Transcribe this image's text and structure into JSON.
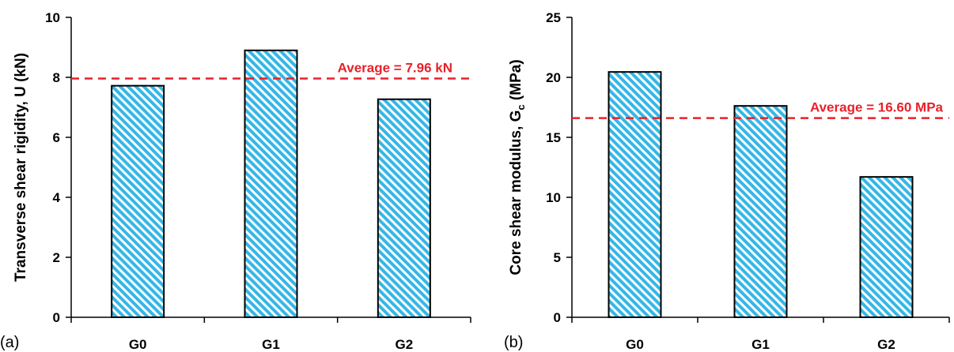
{
  "colors": {
    "bar_fill": "#35b7e6",
    "bar_stroke": "#000000",
    "average_line": "#e8202a",
    "axis": "#000000"
  },
  "chart_data": [
    {
      "type": "bar",
      "panel_label": "(a)",
      "categories": [
        "G0",
        "G1",
        "G2"
      ],
      "values": [
        7.72,
        8.9,
        7.27
      ],
      "ylabel": "Transverse shear rigidity, U (kN)",
      "ylim": [
        0,
        10
      ],
      "yticks": [
        0,
        2,
        4,
        6,
        8,
        10
      ],
      "grid": false,
      "bar_pattern": "diagonal-hatch",
      "reference_line": {
        "value": 7.96,
        "label": "Average = 7.96 kN",
        "style": "dashed"
      }
    },
    {
      "type": "bar",
      "panel_label": "(b)",
      "categories": [
        "G0",
        "G1",
        "G2"
      ],
      "values": [
        20.45,
        17.62,
        11.7
      ],
      "ylabel_main": "Core shear modulus,  G",
      "ylabel_sub": "c",
      "ylabel_unit": " (MPa)",
      "ylim": [
        0,
        25
      ],
      "yticks": [
        0,
        5,
        10,
        15,
        20,
        25
      ],
      "grid": false,
      "bar_pattern": "diagonal-hatch",
      "reference_line": {
        "value": 16.6,
        "label": "Average = 16.60 MPa",
        "style": "dashed"
      }
    }
  ]
}
